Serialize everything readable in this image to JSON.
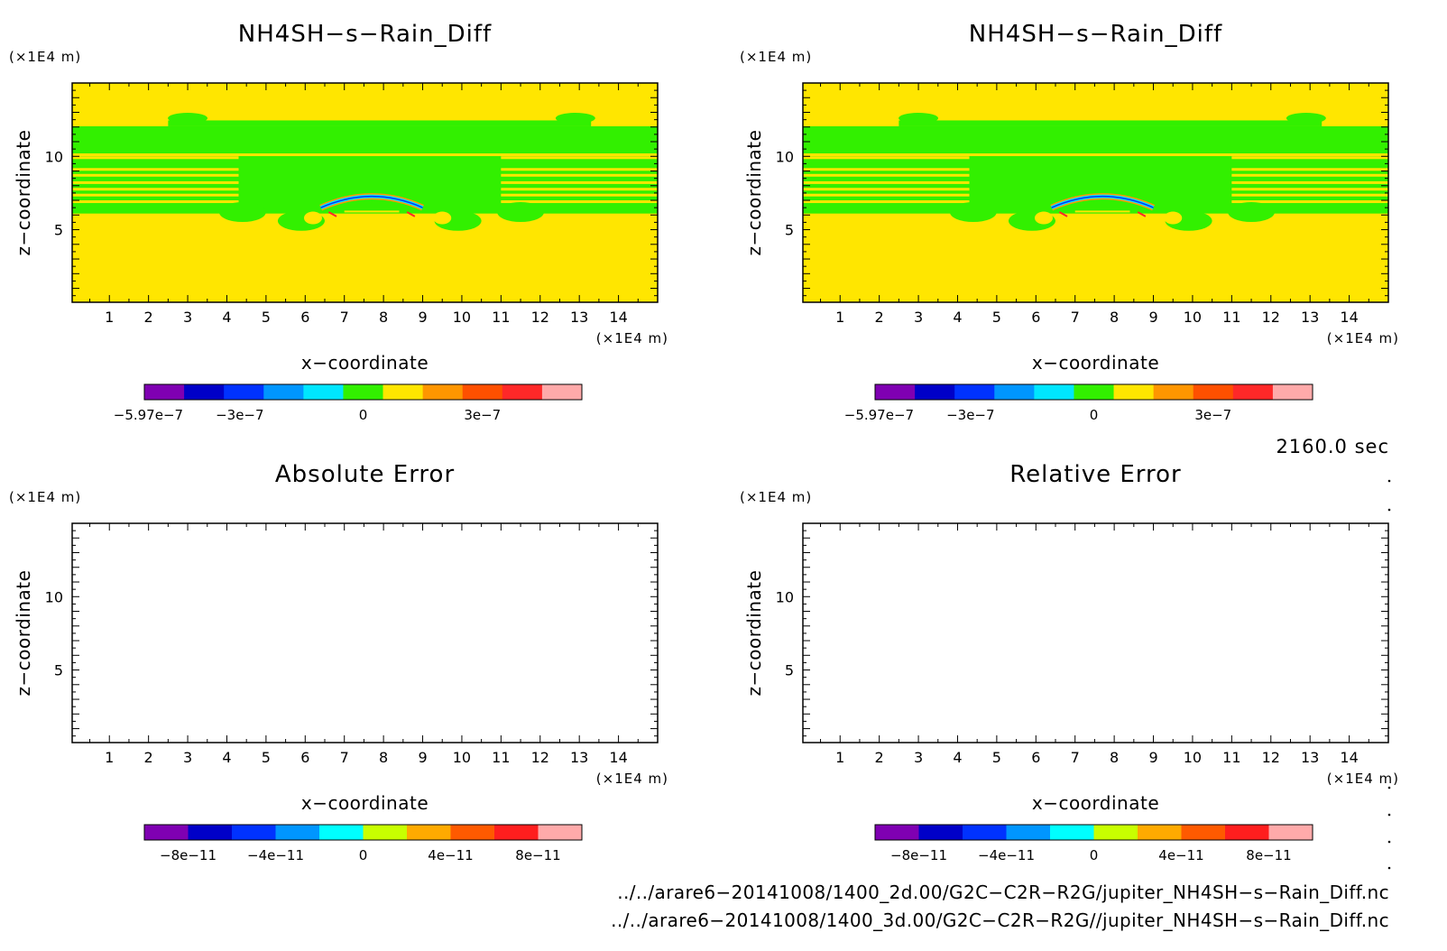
{
  "chart_data": [
    {
      "type": "heatmap",
      "title": "NH4SH−s−Rain_Diff",
      "xlabel": "x−coordinate",
      "ylabel": "z−coordinate",
      "x_unit": "(×1E4 m)",
      "y_unit": "(×1E4 m)",
      "xlim": [
        0.05,
        15.0
      ],
      "ylim": [
        0.05,
        15.0
      ],
      "x_ticks": [
        1,
        2,
        3,
        4,
        5,
        6,
        7,
        8,
        9,
        10,
        11,
        12,
        13,
        14
      ],
      "y_ticks": [
        5,
        10
      ],
      "field": "mostly ~0 (yellow/green bands) with a convective arc near x 6.5-9.0, z 6-7",
      "colorbar": {
        "colors": [
          "#7f00b2",
          "#0000c8",
          "#0032ff",
          "#0096ff",
          "#00e6ff",
          "#32f000",
          "#ffe600",
          "#ff9600",
          "#ff5000",
          "#ff2828",
          "#ffaaaa"
        ],
        "ticks": [
          {
            "label": "−5.97e−7",
            "value": -5.97e-07
          },
          {
            "label": "−3e−7",
            "value": -3e-07
          },
          {
            "label": "0",
            "value": 0
          },
          {
            "label": "3e−7",
            "value": 3e-07
          }
        ]
      }
    },
    {
      "type": "heatmap",
      "title": "NH4SH−s−Rain_Diff",
      "xlabel": "x−coordinate",
      "ylabel": "z−coordinate",
      "x_unit": "(×1E4 m)",
      "y_unit": "(×1E4 m)",
      "xlim": [
        0.05,
        15.0
      ],
      "ylim": [
        0.05,
        15.0
      ],
      "x_ticks": [
        1,
        2,
        3,
        4,
        5,
        6,
        7,
        8,
        9,
        10,
        11,
        12,
        13,
        14
      ],
      "y_ticks": [
        5,
        10
      ],
      "field": "identical to left panel",
      "colorbar": {
        "colors": [
          "#7f00b2",
          "#0000c8",
          "#0032ff",
          "#0096ff",
          "#00e6ff",
          "#32f000",
          "#ffe600",
          "#ff9600",
          "#ff5000",
          "#ff2828",
          "#ffaaaa"
        ],
        "ticks": [
          {
            "label": "−5.97e−7",
            "value": -5.97e-07
          },
          {
            "label": "−3e−7",
            "value": -3e-07
          },
          {
            "label": "0",
            "value": 0
          },
          {
            "label": "3e−7",
            "value": 3e-07
          }
        ]
      }
    },
    {
      "type": "heatmap",
      "title": "Absolute Error",
      "xlabel": "x−coordinate",
      "ylabel": "z−coordinate",
      "x_unit": "(×1E4 m)",
      "y_unit": "(×1E4 m)",
      "xlim": [
        0.05,
        15.0
      ],
      "ylim": [
        0.05,
        15.0
      ],
      "x_ticks": [
        1,
        2,
        3,
        4,
        5,
        6,
        7,
        8,
        9,
        10,
        11,
        12,
        13,
        14
      ],
      "y_ticks": [
        5,
        10
      ],
      "field": "empty (all zero)",
      "colorbar": {
        "colors": [
          "#7f00b2",
          "#0000c8",
          "#0032ff",
          "#0096ff",
          "#00ffff",
          "#c8ff00",
          "#ffaa00",
          "#ff5a00",
          "#ff1e1e",
          "#ffaaaa"
        ],
        "ticks": [
          {
            "label": "−8e−11",
            "value": -8e-11
          },
          {
            "label": "−4e−11",
            "value": -4e-11
          },
          {
            "label": "0",
            "value": 0
          },
          {
            "label": "4e−11",
            "value": 4e-11
          },
          {
            "label": "8e−11",
            "value": 8e-11
          }
        ]
      }
    },
    {
      "type": "heatmap",
      "title": "Relative Error",
      "xlabel": "x−coordinate",
      "ylabel": "z−coordinate",
      "x_unit": "(×1E4 m)",
      "y_unit": "(×1E4 m)",
      "xlim": [
        0.05,
        15.0
      ],
      "ylim": [
        0.05,
        15.0
      ],
      "x_ticks": [
        1,
        2,
        3,
        4,
        5,
        6,
        7,
        8,
        9,
        10,
        11,
        12,
        13,
        14
      ],
      "y_ticks": [
        5,
        10
      ],
      "field": "empty (all zero)",
      "colorbar": {
        "colors": [
          "#7f00b2",
          "#0000c8",
          "#0032ff",
          "#0096ff",
          "#00ffff",
          "#c8ff00",
          "#ffaa00",
          "#ff5a00",
          "#ff1e1e",
          "#ffaaaa"
        ],
        "ticks": [
          {
            "label": "−8e−11",
            "value": -8e-11
          },
          {
            "label": "−4e−11",
            "value": -4e-11
          },
          {
            "label": "0",
            "value": 0
          },
          {
            "label": "4e−11",
            "value": 4e-11
          },
          {
            "label": "8e−11",
            "value": 8e-11
          }
        ]
      }
    }
  ],
  "time_label": "2160.0 sec",
  "files": [
    "../../arare6−20141008/1400_2d.00/G2C−C2R−R2G/jupiter_NH4SH−s−Rain_Diff.nc",
    "../../arare6−20141008/1400_3d.00/G2C−C2R−R2G//jupiter_NH4SH−s−Rain_Diff.nc"
  ],
  "colors": {
    "field_yellow": "#ffe600",
    "field_green": "#32f000"
  }
}
